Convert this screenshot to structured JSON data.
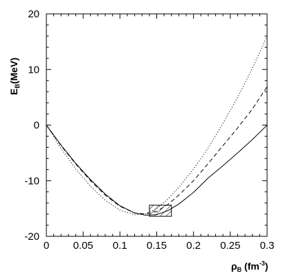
{
  "chart_data": {
    "type": "line",
    "title": "",
    "xlabel": {
      "main": "ρ",
      "sub": "B",
      "unit_pre": " (fm",
      "unit_sup": "-3",
      "unit_post": ")"
    },
    "ylabel": {
      "main": "E",
      "sub": "B",
      "unit": "(MeV)"
    },
    "xlim": [
      0,
      0.3
    ],
    "ylim": [
      -20,
      20
    ],
    "xticks": [
      0,
      0.05,
      0.1,
      0.15,
      0.2,
      0.25,
      0.3
    ],
    "xtick_labels": [
      "0",
      "0.05",
      "0.1",
      "0.15",
      "0.2",
      "0.25",
      "0.3"
    ],
    "yticks": [
      -20,
      -10,
      0,
      10,
      20
    ],
    "ytick_labels": [
      "-20",
      "-10",
      "0",
      "10",
      "20"
    ],
    "grid": false,
    "legend": null,
    "series": [
      {
        "style": "solid",
        "x": [
          0,
          0.02,
          0.04,
          0.06,
          0.08,
          0.1,
          0.12,
          0.135,
          0.15,
          0.165,
          0.18,
          0.2,
          0.22,
          0.24,
          0.26,
          0.28,
          0.3
        ],
        "y": [
          0,
          -3.6,
          -6.9,
          -9.8,
          -12.4,
          -14.5,
          -15.8,
          -16.2,
          -16.1,
          -15.4,
          -14.2,
          -12.1,
          -9.5,
          -7.3,
          -5.0,
          -2.6,
          0
        ]
      },
      {
        "style": "dashed",
        "x": [
          0,
          0.02,
          0.04,
          0.06,
          0.08,
          0.1,
          0.12,
          0.135,
          0.15,
          0.165,
          0.18,
          0.2,
          0.22,
          0.24,
          0.26,
          0.28,
          0.3
        ],
        "y": [
          0,
          -3.7,
          -7.0,
          -10.0,
          -12.6,
          -14.6,
          -15.8,
          -16.0,
          -15.5,
          -14.3,
          -12.6,
          -10.0,
          -6.9,
          -3.7,
          -0.5,
          2.9,
          6.9
        ]
      },
      {
        "style": "dotted",
        "x": [
          0,
          0.02,
          0.04,
          0.06,
          0.08,
          0.1,
          0.12,
          0.135,
          0.15,
          0.165,
          0.18,
          0.2,
          0.22,
          0.24,
          0.26,
          0.28,
          0.3
        ],
        "y": [
          0,
          -4.2,
          -7.9,
          -11.0,
          -13.5,
          -15.3,
          -16.1,
          -15.9,
          -15.0,
          -13.3,
          -11.2,
          -7.9,
          -4.1,
          0.3,
          5.0,
          10.2,
          16.0
        ]
      }
    ],
    "annotations": [
      {
        "type": "hatched-box",
        "x_range": [
          0.14,
          0.17
        ],
        "y_range": [
          -16.4,
          -14.4
        ]
      }
    ]
  }
}
